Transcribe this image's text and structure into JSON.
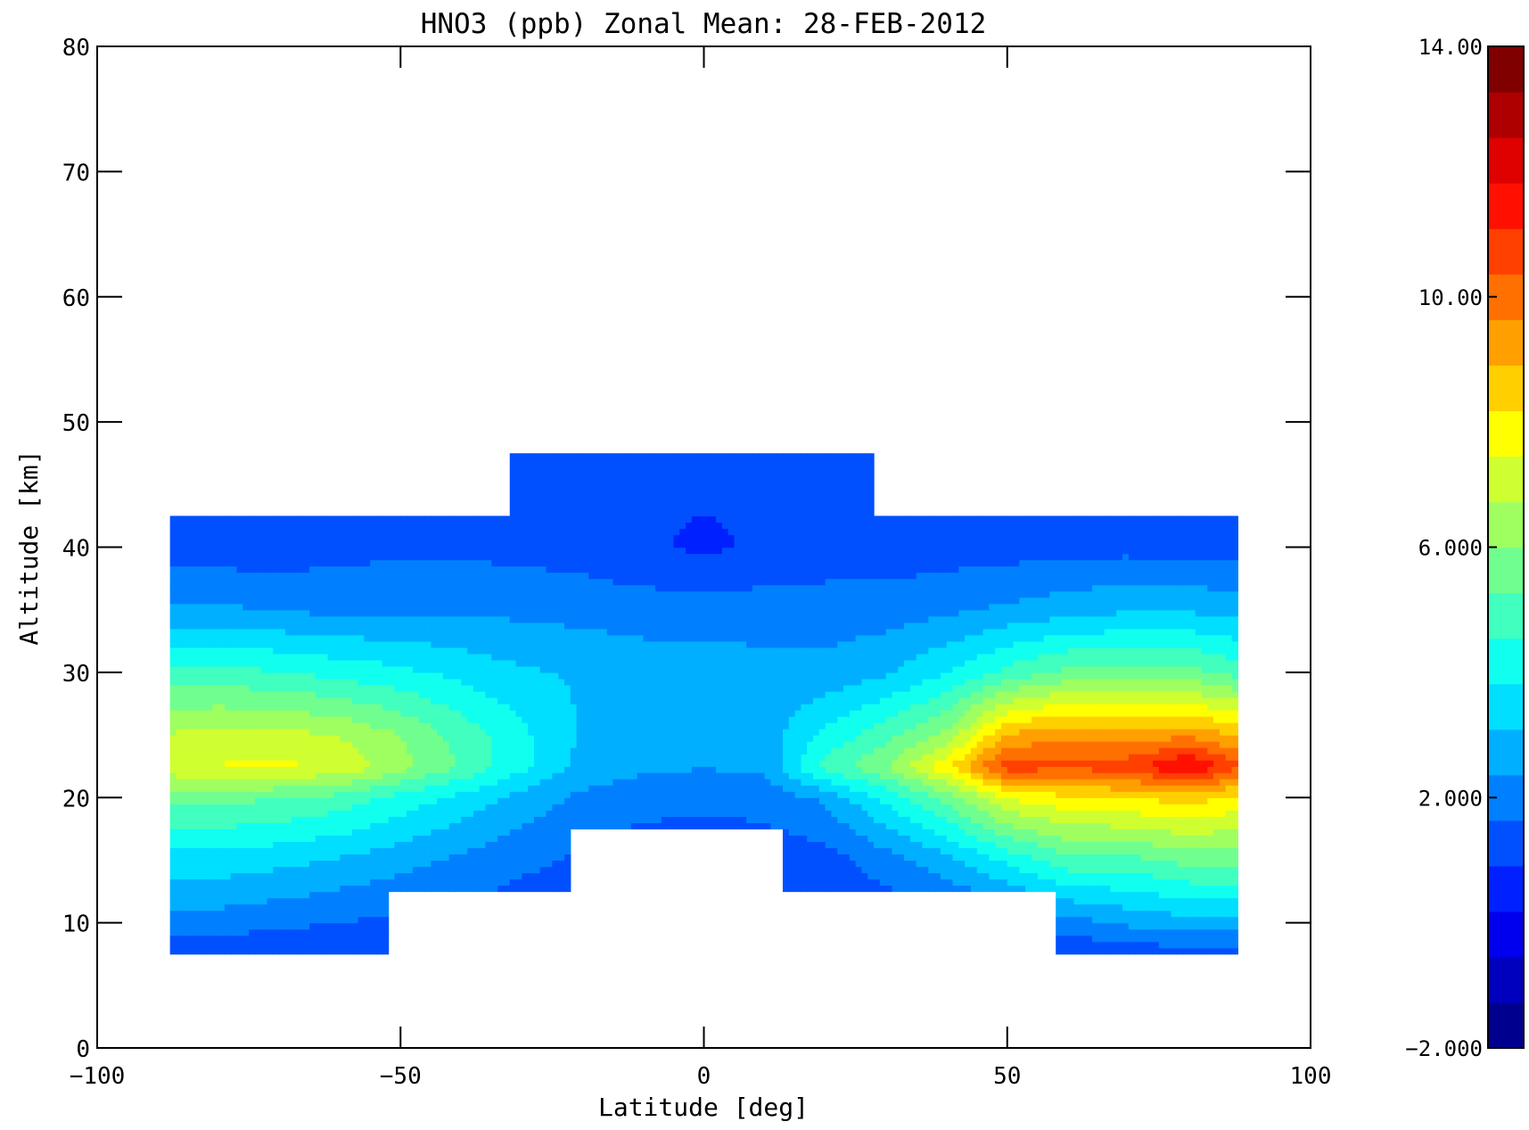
{
  "chart_data": {
    "type": "heatmap",
    "title": "HNO3 (ppb) Zonal Mean: 28-FEB-2012",
    "xlabel": "Latitude [deg]",
    "ylabel": "Altitude [km]",
    "xlim": [
      -100,
      100
    ],
    "ylim": [
      0,
      80
    ],
    "x_ticks": [
      -100,
      -50,
      0,
      50,
      100
    ],
    "y_ticks": [
      0,
      10,
      20,
      30,
      40,
      50,
      60,
      70,
      80
    ],
    "colorbar": {
      "min": -2.0,
      "max": 14.0,
      "tick_values": [
        -2,
        2,
        6,
        10,
        14
      ],
      "tick_labels": [
        "-2.000",
        "2.000",
        "6.000",
        "10.00",
        "14.00"
      ],
      "colors": [
        "#00008f",
        "#0000bf",
        "#0000ef",
        "#0020ff",
        "#0050ff",
        "#0080ff",
        "#00afff",
        "#00dfff",
        "#10ffef",
        "#40ffbf",
        "#70ff8f",
        "#9fff60",
        "#cfff30",
        "#ffff00",
        "#ffcf00",
        "#ff9f00",
        "#ff7000",
        "#ff4000",
        "#ff1000",
        "#df0000",
        "#af0000",
        "#800000"
      ]
    },
    "grid": false,
    "data_coverage": [
      {
        "lat": [
          -88,
          -52
        ],
        "alt": [
          7.5,
          42.5
        ]
      },
      {
        "lat": [
          -52,
          -32
        ],
        "alt": [
          12.5,
          42.5
        ]
      },
      {
        "lat": [
          -32,
          -22
        ],
        "alt": [
          12.5,
          47.5
        ]
      },
      {
        "lat": [
          -22,
          13
        ],
        "alt": [
          17.5,
          47.5
        ]
      },
      {
        "lat": [
          13,
          28
        ],
        "alt": [
          12.5,
          47.5
        ]
      },
      {
        "lat": [
          28,
          58
        ],
        "alt": [
          12.5,
          42.5
        ]
      },
      {
        "lat": [
          58,
          88
        ],
        "alt": [
          7.5,
          42.5
        ]
      }
    ],
    "lat_grid": [
      -88,
      -80,
      -70,
      -60,
      -50,
      -40,
      -30,
      -20,
      -10,
      0,
      10,
      20,
      30,
      40,
      50,
      60,
      70,
      80,
      88
    ],
    "alt_grid": [
      7.5,
      10,
      15,
      20,
      22.5,
      25,
      30,
      35,
      40,
      45,
      47.5
    ],
    "values": [
      [
        1.0,
        1.0,
        1.0,
        1.0,
        1.0,
        1.0,
        1.0,
        1.0,
        1.0,
        1.0,
        1.0,
        1.0,
        1.0,
        1.0,
        1.0,
        1.0,
        1.2,
        1.2,
        1.2
      ],
      [
        2.0,
        2.0,
        1.8,
        1.6,
        1.5,
        1.3,
        1.2,
        1.0,
        1.0,
        1.0,
        1.0,
        1.0,
        1.1,
        1.2,
        1.5,
        2.0,
        2.5,
        2.8,
        2.8
      ],
      [
        3.5,
        3.5,
        3.3,
        3.0,
        2.6,
        2.2,
        1.8,
        1.5,
        1.2,
        1.2,
        1.2,
        1.3,
        2.0,
        2.8,
        4.0,
        5.0,
        5.0,
        5.5,
        5.5
      ],
      [
        5.5,
        5.5,
        5.3,
        5.0,
        4.3,
        3.6,
        2.8,
        2.2,
        1.9,
        1.8,
        1.9,
        2.5,
        4.0,
        5.5,
        7.5,
        8.0,
        8.2,
        8.5,
        8.0
      ],
      [
        7.2,
        7.5,
        7.6,
        7.3,
        6.3,
        5.2,
        4.0,
        2.8,
        2.5,
        2.4,
        2.5,
        4.8,
        6.0,
        8.0,
        10.8,
        10.5,
        10.8,
        12.0,
        10.5
      ],
      [
        6.8,
        7.0,
        7.0,
        6.7,
        6.0,
        5.0,
        4.0,
        3.0,
        2.7,
        2.6,
        2.7,
        4.0,
        5.0,
        6.2,
        9.0,
        9.5,
        9.2,
        9.5,
        8.8
      ],
      [
        4.8,
        4.8,
        4.6,
        4.3,
        4.0,
        3.6,
        3.2,
        3.0,
        2.8,
        2.8,
        2.6,
        2.6,
        3.0,
        3.8,
        4.8,
        5.5,
        5.5,
        5.5,
        5.0
      ],
      [
        2.5,
        2.5,
        2.3,
        2.2,
        2.2,
        2.2,
        2.2,
        2.1,
        2.0,
        2.0,
        2.0,
        2.0,
        2.0,
        2.2,
        2.5,
        2.8,
        3.0,
        3.0,
        2.8
      ],
      [
        1.2,
        1.2,
        1.2,
        1.4,
        1.5,
        1.5,
        1.4,
        1.3,
        1.0,
        0.8,
        1.0,
        1.2,
        1.2,
        1.3,
        1.3,
        1.4,
        1.4,
        1.3,
        1.3
      ],
      [
        1.0,
        1.0,
        1.0,
        1.0,
        1.0,
        1.0,
        1.0,
        1.0,
        1.0,
        1.0,
        1.0,
        1.0,
        1.0,
        1.0,
        1.0,
        1.0,
        1.0,
        1.0,
        1.0
      ],
      [
        1.0,
        1.0,
        1.0,
        1.0,
        1.0,
        1.0,
        1.0,
        1.0,
        1.0,
        1.0,
        1.0,
        1.0,
        1.0,
        1.0,
        1.0,
        1.0,
        1.0,
        1.0,
        1.0
      ]
    ]
  }
}
